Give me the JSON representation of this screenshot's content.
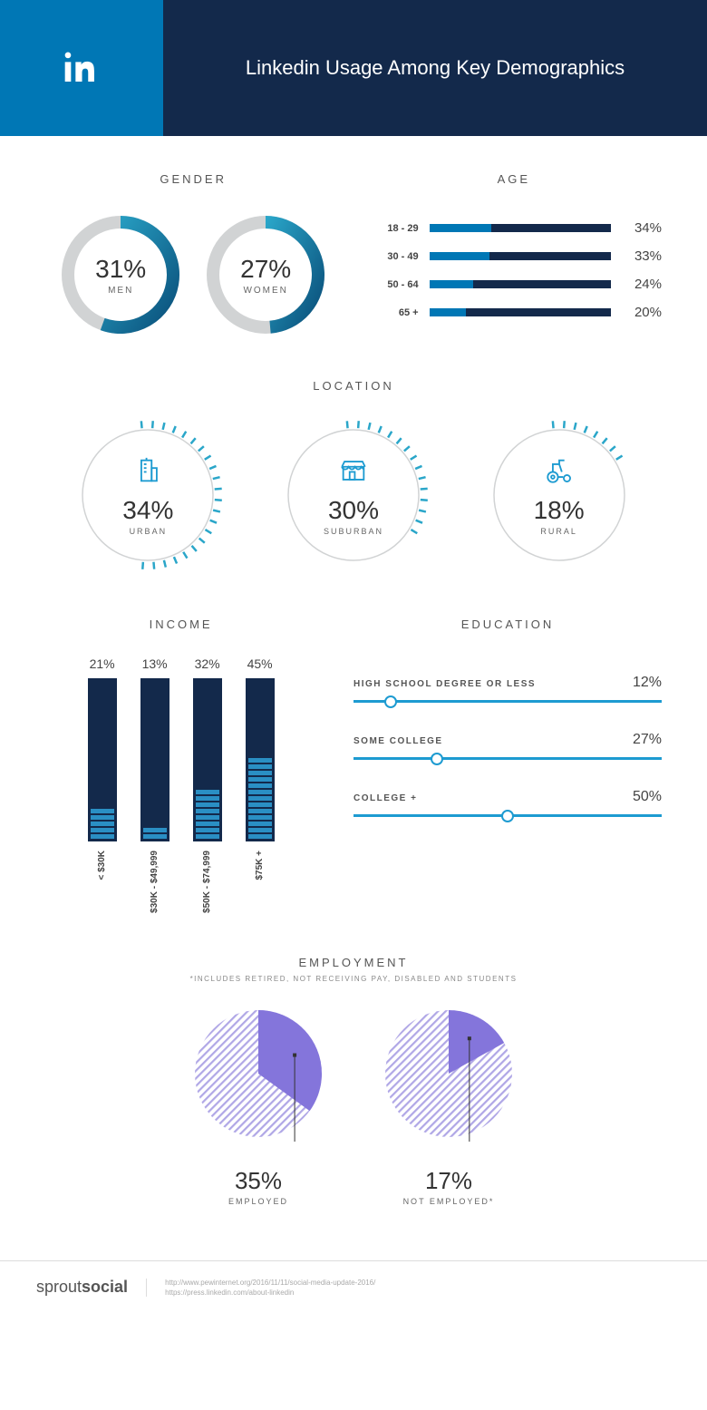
{
  "colors": {
    "header_logo_bg": "#0077b5",
    "header_title_bg": "#13294b",
    "dark_navy": "#13294b",
    "blue": "#0077b5",
    "light_blue": "#1d9bd1",
    "teal": "#2aa6c9",
    "ring_gray": "#d1d3d4",
    "purple": "#8475db",
    "purple_light": "#b0a7e6"
  },
  "header": {
    "title": "Linkedin Usage Among Key Demographics"
  },
  "gender": {
    "title": "GENDER",
    "items": [
      {
        "label": "MEN",
        "pct": 31,
        "arc_end_deg": 200,
        "gradient_from": "#2aa6c9",
        "gradient_to": "#0a4f7a"
      },
      {
        "label": "WOMEN",
        "pct": 27,
        "arc_end_deg": 175,
        "gradient_from": "#2aa6c9",
        "gradient_to": "#0a4f7a"
      }
    ]
  },
  "age": {
    "title": "AGE",
    "items": [
      {
        "label": "18 - 29",
        "pct": 34,
        "fill_pct": 34,
        "fill_color": "#0077b5"
      },
      {
        "label": "30 - 49",
        "pct": 33,
        "fill_pct": 33,
        "fill_color": "#0077b5"
      },
      {
        "label": "50 - 64",
        "pct": 24,
        "fill_pct": 24,
        "fill_color": "#0077b5"
      },
      {
        "label": "65 +",
        "pct": 20,
        "fill_pct": 20,
        "fill_color": "#0077b5"
      }
    ]
  },
  "location": {
    "title": "LOCATION",
    "items": [
      {
        "label": "URBAN",
        "pct": 34,
        "dash_count": 22,
        "icon": "building"
      },
      {
        "label": "SUBURBAN",
        "pct": 30,
        "dash_count": 15,
        "icon": "shop"
      },
      {
        "label": "RURAL",
        "pct": 18,
        "dash_count": 8,
        "icon": "tractor"
      }
    ],
    "dash_color": "#2aa6c9",
    "ring_stroke": "#d1d3d4"
  },
  "income": {
    "title": "INCOME",
    "bar_bg": "#13294b",
    "seg_color": "#2a8fc4",
    "items": [
      {
        "label": "< $30K",
        "pct": 21,
        "segs": 5
      },
      {
        "label": "$30K - $49,999",
        "pct": 13,
        "segs": 2
      },
      {
        "label": "$50K - $74,999",
        "pct": 32,
        "segs": 8
      },
      {
        "label": "$75K +",
        "pct": 45,
        "segs": 13
      }
    ]
  },
  "education": {
    "title": "EDUCATION",
    "track_color": "#1d9bd1",
    "items": [
      {
        "label": "HIGH SCHOOL DEGREE OR LESS",
        "pct": 12,
        "handle_pos_pct": 12
      },
      {
        "label": "SOME COLLEGE",
        "pct": 27,
        "handle_pos_pct": 27
      },
      {
        "label": "COLLEGE +",
        "pct": 50,
        "handle_pos_pct": 50
      }
    ]
  },
  "employment": {
    "title": "EMPLOYMENT",
    "subtitle": "*INCLUDES RETIRED, NOT RECEIVING PAY, DISABLED AND STUDENTS",
    "slice_color": "#8475db",
    "hatch_color": "#b0a7e6",
    "items": [
      {
        "label": "EMPLOYED",
        "pct": 35,
        "slice_deg": 126
      },
      {
        "label": "NOT EMPLOYED*",
        "pct": 17,
        "slice_deg": 61
      }
    ]
  },
  "footer": {
    "brand_light": "sprout",
    "brand_bold": "social",
    "links": [
      "http://www.pewinternet.org/2016/11/11/social-media-update-2016/",
      "https://press.linkedin.com/about-linkedin"
    ]
  }
}
